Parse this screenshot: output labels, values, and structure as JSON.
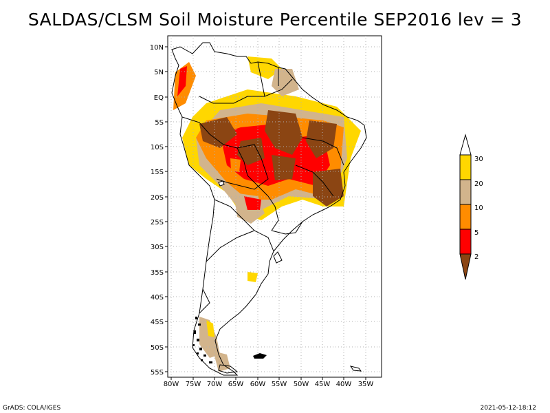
{
  "title": "SALDAS/CLSM Soil Moisture Percentile SEP2016 lev = 3",
  "map": {
    "region": "South America",
    "lat_labels": [
      "10N",
      "5N",
      "EQ",
      "5S",
      "10S",
      "15S",
      "20S",
      "25S",
      "30S",
      "35S",
      "40S",
      "45S",
      "50S",
      "55S"
    ],
    "lat_values": [
      10,
      5,
      0,
      -5,
      -10,
      -15,
      -20,
      -25,
      -30,
      -35,
      -40,
      -45,
      -50,
      -55
    ],
    "lon_labels": [
      "80W",
      "75W",
      "70W",
      "65W",
      "60W",
      "55W",
      "50W",
      "45W",
      "40W",
      "35W"
    ],
    "lon_values": [
      -80,
      -75,
      -70,
      -65,
      -60,
      -55,
      -50,
      -45,
      -40,
      -35
    ]
  },
  "legend": {
    "levels": [
      "2",
      "5",
      "10",
      "20",
      "30"
    ],
    "colors": [
      "#8b4513",
      "#ff0000",
      "#ff8c00",
      "#d2b48c",
      "#ffd700",
      "#ffffff"
    ]
  },
  "footer": {
    "left": "GrADS: COLA/IGES",
    "right": "2021-05-12-18:12"
  }
}
